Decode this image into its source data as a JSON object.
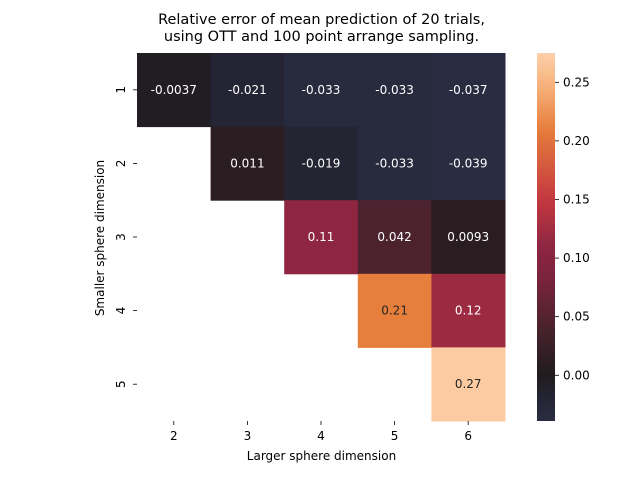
{
  "chart_data": {
    "type": "heatmap",
    "title_lines": [
      "Relative error of mean prediction of 20 trials,",
      "using OTT and 100 point arrange sampling."
    ],
    "xlabel": "Larger sphere dimension",
    "ylabel": "Smaller sphere dimension",
    "x_categories": [
      "2",
      "3",
      "4",
      "5",
      "6"
    ],
    "y_categories": [
      "1",
      "2",
      "3",
      "4",
      "5"
    ],
    "cells": [
      {
        "y": "1",
        "x": "2",
        "value": -0.0037,
        "label": "-0.0037"
      },
      {
        "y": "1",
        "x": "3",
        "value": -0.021,
        "label": "-0.021"
      },
      {
        "y": "1",
        "x": "4",
        "value": -0.033,
        "label": "-0.033"
      },
      {
        "y": "1",
        "x": "5",
        "value": -0.033,
        "label": "-0.033"
      },
      {
        "y": "1",
        "x": "6",
        "value": -0.037,
        "label": "-0.037"
      },
      {
        "y": "2",
        "x": "3",
        "value": 0.011,
        "label": "0.011"
      },
      {
        "y": "2",
        "x": "4",
        "value": -0.019,
        "label": "-0.019"
      },
      {
        "y": "2",
        "x": "5",
        "value": -0.033,
        "label": "-0.033"
      },
      {
        "y": "2",
        "x": "6",
        "value": -0.039,
        "label": "-0.039"
      },
      {
        "y": "3",
        "x": "4",
        "value": 0.11,
        "label": "0.11"
      },
      {
        "y": "3",
        "x": "5",
        "value": 0.042,
        "label": "0.042"
      },
      {
        "y": "3",
        "x": "6",
        "value": 0.0093,
        "label": "0.0093"
      },
      {
        "y": "4",
        "x": "5",
        "value": 0.21,
        "label": "0.21"
      },
      {
        "y": "4",
        "x": "6",
        "value": 0.12,
        "label": "0.12"
      },
      {
        "y": "5",
        "x": "6",
        "value": 0.27,
        "label": "0.27"
      }
    ],
    "colorbar": {
      "vmin": -0.039,
      "vmax": 0.275,
      "ticks": [
        0.0,
        0.05,
        0.1,
        0.15,
        0.2,
        0.25
      ],
      "tick_labels": [
        "0.00",
        "0.05",
        "0.10",
        "0.15",
        "0.20",
        "0.25"
      ],
      "colormap": "icefire-centered",
      "center": 0.0
    },
    "grid": false,
    "legend": "colorbar-right"
  }
}
